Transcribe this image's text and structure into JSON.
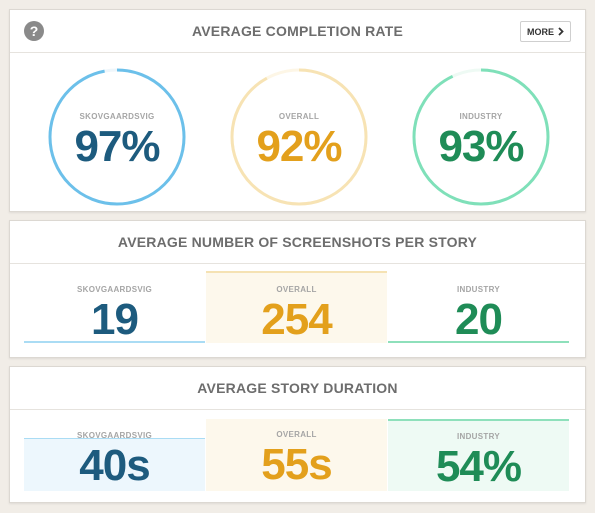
{
  "colors": {
    "skovgaardsvig": "#1d5b7e",
    "overall": "#e3a01c",
    "industry": "#1f8c57",
    "skov_ring": "#6cc0ea",
    "overall_ring": "#f7e3b4",
    "industry_ring": "#7fe0b9",
    "overall_fill": "#fdf8ec",
    "skov_fill": "#edf7fd",
    "industry_fill": "#eefaf4"
  },
  "completion": {
    "help_icon": "question-icon",
    "title": "AVERAGE COMPLETION RATE",
    "more_label": "MORE",
    "more_icon": "chevron-right-icon",
    "items": [
      {
        "label": "SKOVGAARDSVIG",
        "value": "97%",
        "percent": 97
      },
      {
        "label": "OVERALL",
        "value": "92%",
        "percent": 92
      },
      {
        "label": "INDUSTRY",
        "value": "93%",
        "percent": 93
      }
    ]
  },
  "screenshots": {
    "title": "AVERAGE NUMBER OF SCREENSHOTS PER STORY",
    "items": [
      {
        "label": "SKOVGAARDSVIG",
        "value": "19"
      },
      {
        "label": "OVERALL",
        "value": "254"
      },
      {
        "label": "INDUSTRY",
        "value": "20"
      }
    ]
  },
  "duration": {
    "title": "AVERAGE STORY DURATION",
    "items": [
      {
        "label": "SKOVGAARDSVIG",
        "value": "40s"
      },
      {
        "label": "OVERALL",
        "value": "55s"
      },
      {
        "label": "INDUSTRY",
        "value": "54%"
      }
    ]
  }
}
